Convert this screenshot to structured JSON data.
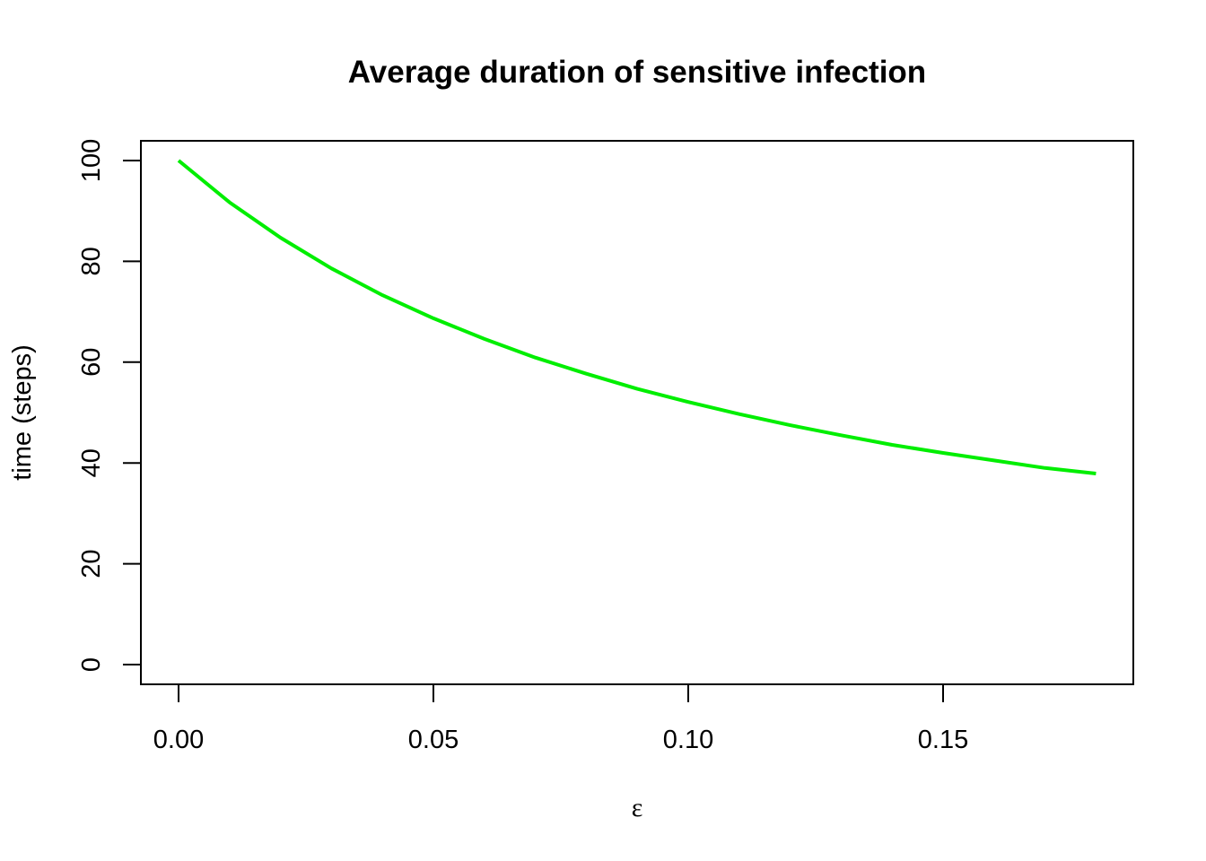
{
  "chart_data": {
    "type": "line",
    "title": "Average duration of sensitive infection",
    "xlabel": "ε",
    "ylabel": "time (steps)",
    "xlim": [
      0.0,
      0.18
    ],
    "ylim": [
      0,
      100
    ],
    "x_ticks": [
      0.0,
      0.05,
      0.1,
      0.15
    ],
    "x_tick_labels": [
      "0.00",
      "0.05",
      "0.10",
      "0.15"
    ],
    "y_ticks": [
      0,
      20,
      40,
      60,
      80,
      100
    ],
    "y_tick_labels": [
      "0",
      "20",
      "40",
      "60",
      "80",
      "100"
    ],
    "grid": false,
    "series": [
      {
        "color": "#00ee00",
        "x": [
          0.0,
          0.01,
          0.02,
          0.03,
          0.04,
          0.05,
          0.06,
          0.07,
          0.08,
          0.09,
          0.1,
          0.11,
          0.12,
          0.13,
          0.14,
          0.15,
          0.16,
          0.17,
          0.18
        ],
        "values": [
          100.0,
          91.7,
          84.7,
          78.6,
          73.3,
          68.7,
          64.6,
          60.9,
          57.7,
          54.7,
          52.1,
          49.7,
          47.5,
          45.5,
          43.6,
          42.0,
          40.5,
          39.0,
          37.9
        ]
      }
    ]
  }
}
